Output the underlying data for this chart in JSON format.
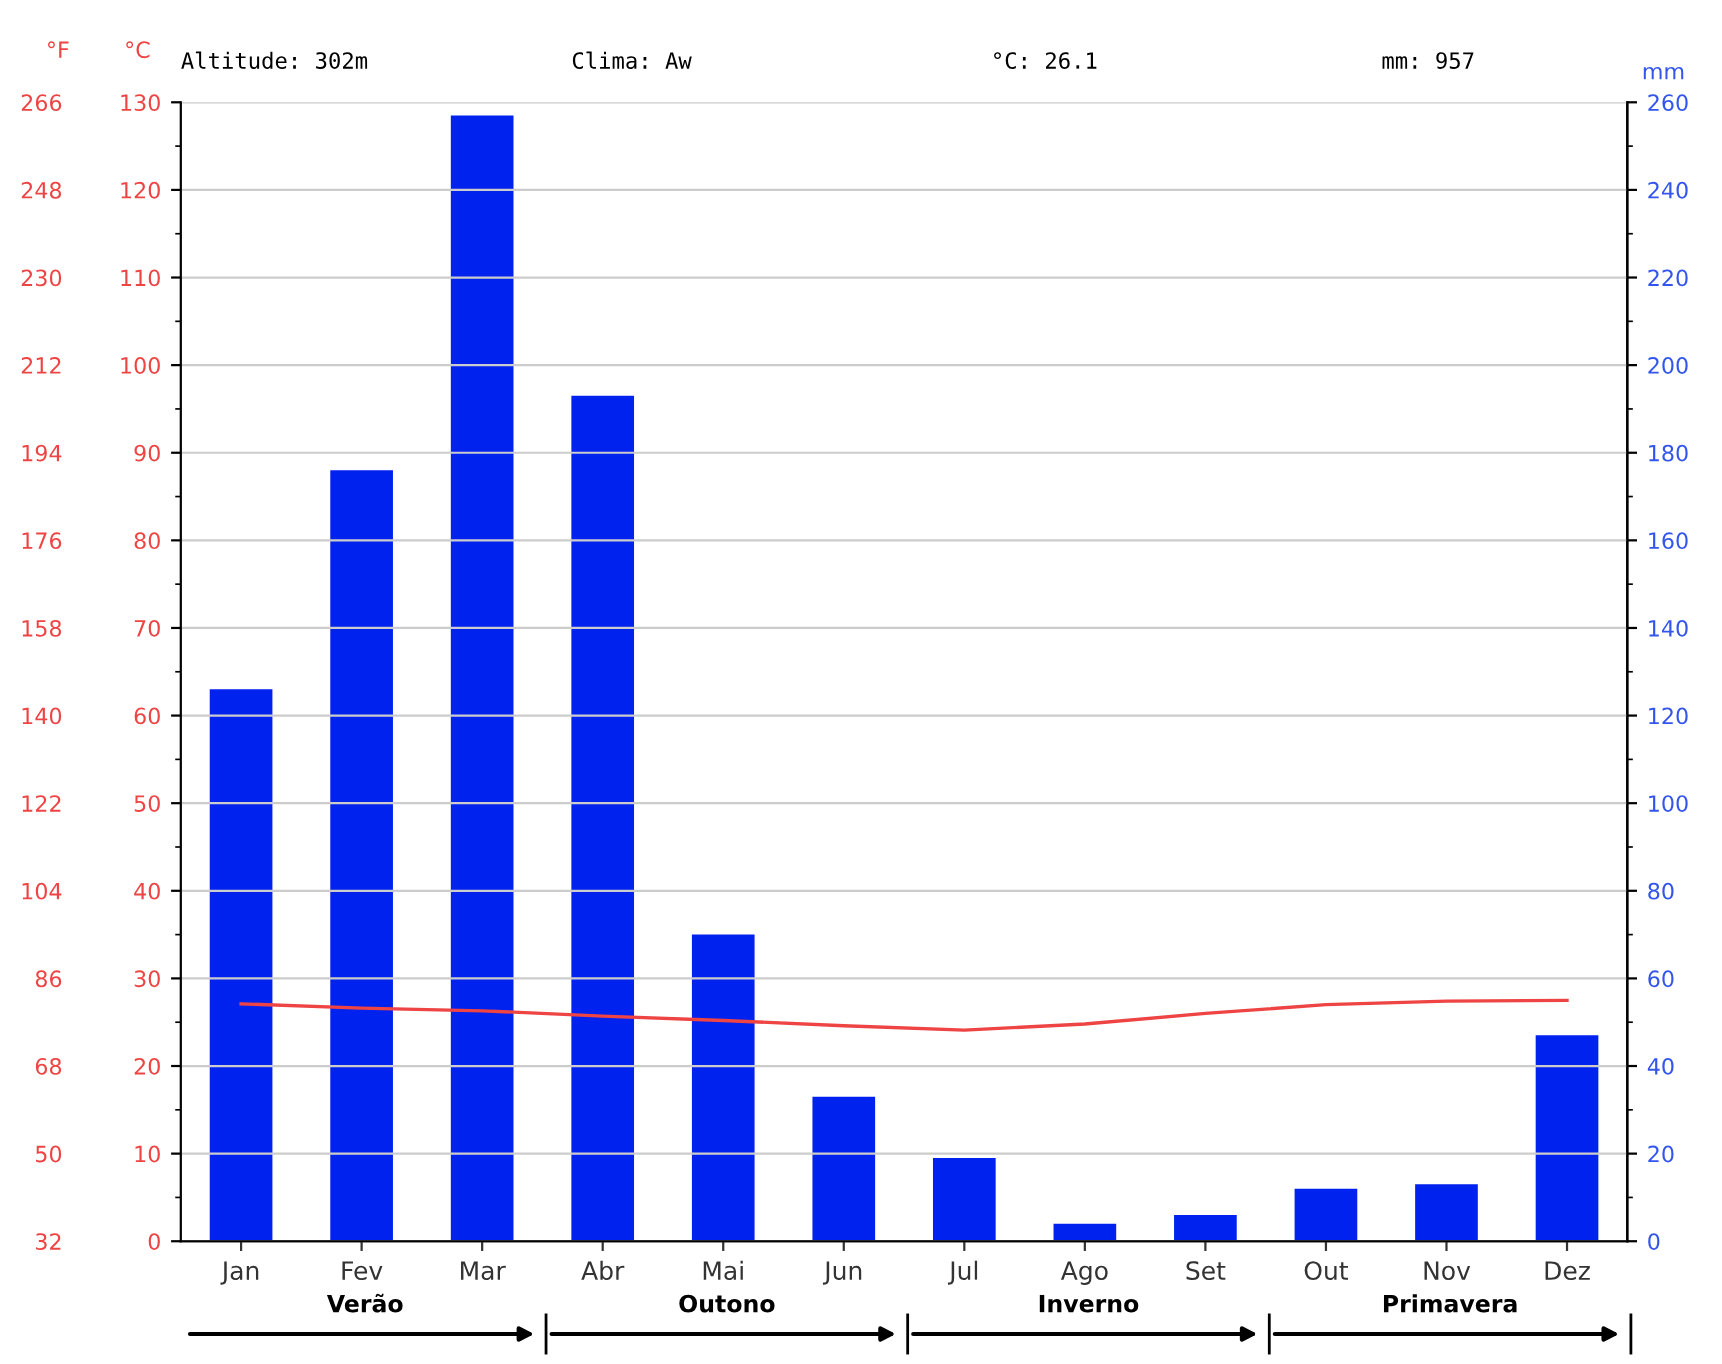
{
  "chart_data": {
    "type": "bar",
    "categories": [
      "Jan",
      "Fev",
      "Mar",
      "Abr",
      "Mai",
      "Jun",
      "Jul",
      "Ago",
      "Set",
      "Out",
      "Nov",
      "Dez"
    ],
    "series": [
      {
        "axis": "y2",
        "color": "#0022ee",
        "values": [
          126,
          176,
          257,
          193,
          70,
          33,
          19,
          4,
          6,
          12,
          13,
          47
        ]
      },
      {
        "type": "line",
        "axis": "y",
        "color": "#ee4444",
        "values": [
          27.1,
          26.6,
          26.3,
          25.7,
          25.2,
          24.6,
          24.1,
          24.8,
          26.0,
          27.0,
          27.4,
          27.5
        ]
      }
    ],
    "ylabel": "°C",
    "y2label": "mm",
    "y3label": "°F",
    "ylim": [
      0,
      130
    ],
    "yticks": [
      0,
      10,
      20,
      30,
      40,
      50,
      60,
      70,
      80,
      90,
      100,
      110,
      120,
      130
    ],
    "y2lim": [
      0,
      260
    ],
    "y2ticks": [
      0,
      20,
      40,
      60,
      80,
      100,
      120,
      140,
      160,
      180,
      200,
      220,
      240,
      260
    ],
    "y3lim": [
      32,
      266
    ],
    "y3ticks": [
      32,
      50,
      68,
      86,
      104,
      122,
      140,
      158,
      176,
      194,
      212,
      230,
      248,
      266
    ],
    "grid": "y",
    "marker": "none",
    "line_style": "solid",
    "legend": false,
    "annotations": [
      "Altitude: 302m",
      "Clima: Aw",
      "°C: 26.1",
      "mm: 957",
      "Verão",
      "Outono",
      "Inverno",
      "Primavera"
    ]
  }
}
